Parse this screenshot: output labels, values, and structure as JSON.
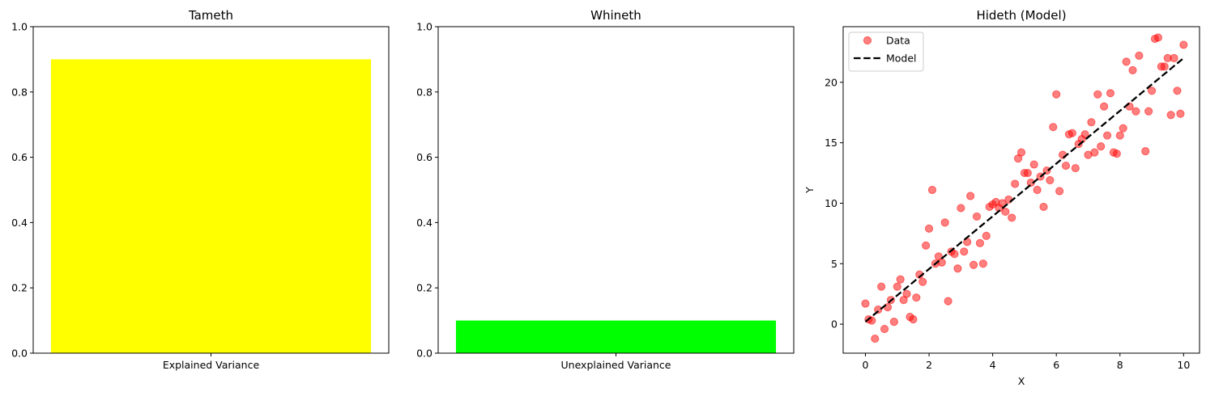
{
  "chart_data": [
    {
      "type": "bar",
      "title": "Tameth",
      "categories": [
        "Explained Variance"
      ],
      "values": [
        0.9
      ],
      "ylim": [
        0,
        1.0
      ],
      "yticks": [
        "0.0",
        "0.2",
        "0.4",
        "0.6",
        "0.8",
        "1.0"
      ],
      "color": "#ffff00",
      "xlabel": "",
      "ylabel": ""
    },
    {
      "type": "bar",
      "title": "Whineth",
      "categories": [
        "Unexplained Variance"
      ],
      "values": [
        0.1
      ],
      "ylim": [
        0,
        1.0
      ],
      "yticks": [
        "0.0",
        "0.2",
        "0.4",
        "0.6",
        "0.8",
        "1.0"
      ],
      "color": "#00ff00",
      "xlabel": "",
      "ylabel": ""
    },
    {
      "type": "scatter",
      "title": "Hideth (Model)",
      "xlabel": "X",
      "ylabel": "Y",
      "xlim": [
        -0.7,
        10.5
      ],
      "ylim": [
        -2.4,
        24.6
      ],
      "xticks": [
        "0",
        "2",
        "4",
        "6",
        "8",
        "10"
      ],
      "yticks": [
        "0",
        "5",
        "10",
        "15",
        "20"
      ],
      "legend": "top-left",
      "series": [
        {
          "name": "Data",
          "color": "#ff0000",
          "points": [
            [
              0.0,
              1.7
            ],
            [
              0.1,
              0.4
            ],
            [
              0.2,
              0.3
            ],
            [
              0.3,
              -1.2
            ],
            [
              0.4,
              1.2
            ],
            [
              0.5,
              3.1
            ],
            [
              0.6,
              -0.4
            ],
            [
              0.7,
              1.4
            ],
            [
              0.8,
              2.0
            ],
            [
              0.9,
              0.2
            ],
            [
              1.0,
              3.1
            ],
            [
              1.1,
              3.7
            ],
            [
              1.2,
              2.0
            ],
            [
              1.3,
              2.5
            ],
            [
              1.4,
              0.6
            ],
            [
              1.5,
              0.4
            ],
            [
              1.6,
              2.2
            ],
            [
              1.7,
              4.1
            ],
            [
              1.8,
              3.5
            ],
            [
              1.9,
              6.5
            ],
            [
              2.0,
              7.9
            ],
            [
              2.1,
              11.1
            ],
            [
              2.2,
              5.0
            ],
            [
              2.3,
              5.6
            ],
            [
              2.4,
              5.1
            ],
            [
              2.5,
              8.4
            ],
            [
              2.6,
              1.9
            ],
            [
              2.7,
              6.0
            ],
            [
              2.8,
              5.8
            ],
            [
              2.9,
              4.6
            ],
            [
              3.0,
              9.6
            ],
            [
              3.1,
              6.0
            ],
            [
              3.2,
              6.8
            ],
            [
              3.3,
              10.6
            ],
            [
              3.4,
              4.9
            ],
            [
              3.5,
              8.9
            ],
            [
              3.6,
              6.7
            ],
            [
              3.7,
              5.0
            ],
            [
              3.8,
              7.3
            ],
            [
              3.9,
              9.7
            ],
            [
              4.0,
              9.9
            ],
            [
              4.1,
              10.1
            ],
            [
              4.2,
              9.6
            ],
            [
              4.3,
              10.0
            ],
            [
              4.4,
              9.3
            ],
            [
              4.5,
              10.3
            ],
            [
              4.6,
              8.8
            ],
            [
              4.7,
              11.6
            ],
            [
              4.8,
              13.7
            ],
            [
              4.9,
              14.2
            ],
            [
              5.0,
              12.5
            ],
            [
              5.1,
              12.5
            ],
            [
              5.2,
              11.7
            ],
            [
              5.3,
              13.2
            ],
            [
              5.4,
              11.1
            ],
            [
              5.5,
              12.2
            ],
            [
              5.6,
              9.7
            ],
            [
              5.7,
              12.7
            ],
            [
              5.8,
              11.9
            ],
            [
              5.9,
              16.3
            ],
            [
              6.0,
              19.0
            ],
            [
              6.1,
              11.0
            ],
            [
              6.2,
              14.0
            ],
            [
              6.3,
              13.1
            ],
            [
              6.4,
              15.7
            ],
            [
              6.5,
              15.8
            ],
            [
              6.6,
              12.9
            ],
            [
              6.7,
              14.9
            ],
            [
              6.8,
              15.3
            ],
            [
              6.9,
              15.7
            ],
            [
              7.0,
              14.0
            ],
            [
              7.1,
              16.7
            ],
            [
              7.2,
              14.2
            ],
            [
              7.3,
              19.0
            ],
            [
              7.4,
              14.7
            ],
            [
              7.5,
              18.0
            ],
            [
              7.6,
              15.6
            ],
            [
              7.7,
              19.1
            ],
            [
              7.8,
              14.2
            ],
            [
              7.9,
              14.1
            ],
            [
              8.0,
              15.6
            ],
            [
              8.1,
              16.2
            ],
            [
              8.2,
              21.7
            ],
            [
              8.3,
              18.0
            ],
            [
              8.4,
              21.0
            ],
            [
              8.5,
              17.6
            ],
            [
              8.6,
              22.2
            ],
            [
              8.8,
              14.3
            ],
            [
              8.9,
              17.6
            ],
            [
              9.0,
              19.3
            ],
            [
              9.1,
              23.6
            ],
            [
              9.2,
              23.7
            ],
            [
              9.3,
              21.3
            ],
            [
              9.4,
              21.3
            ],
            [
              9.5,
              22.0
            ],
            [
              9.6,
              17.3
            ],
            [
              9.7,
              22.0
            ],
            [
              9.8,
              19.3
            ],
            [
              9.9,
              17.4
            ],
            [
              10.0,
              23.1
            ]
          ]
        },
        {
          "name": "Model",
          "color": "#000000",
          "style": "dashed",
          "x": [
            0,
            10
          ],
          "y": [
            0.2,
            22.0
          ]
        }
      ]
    }
  ]
}
